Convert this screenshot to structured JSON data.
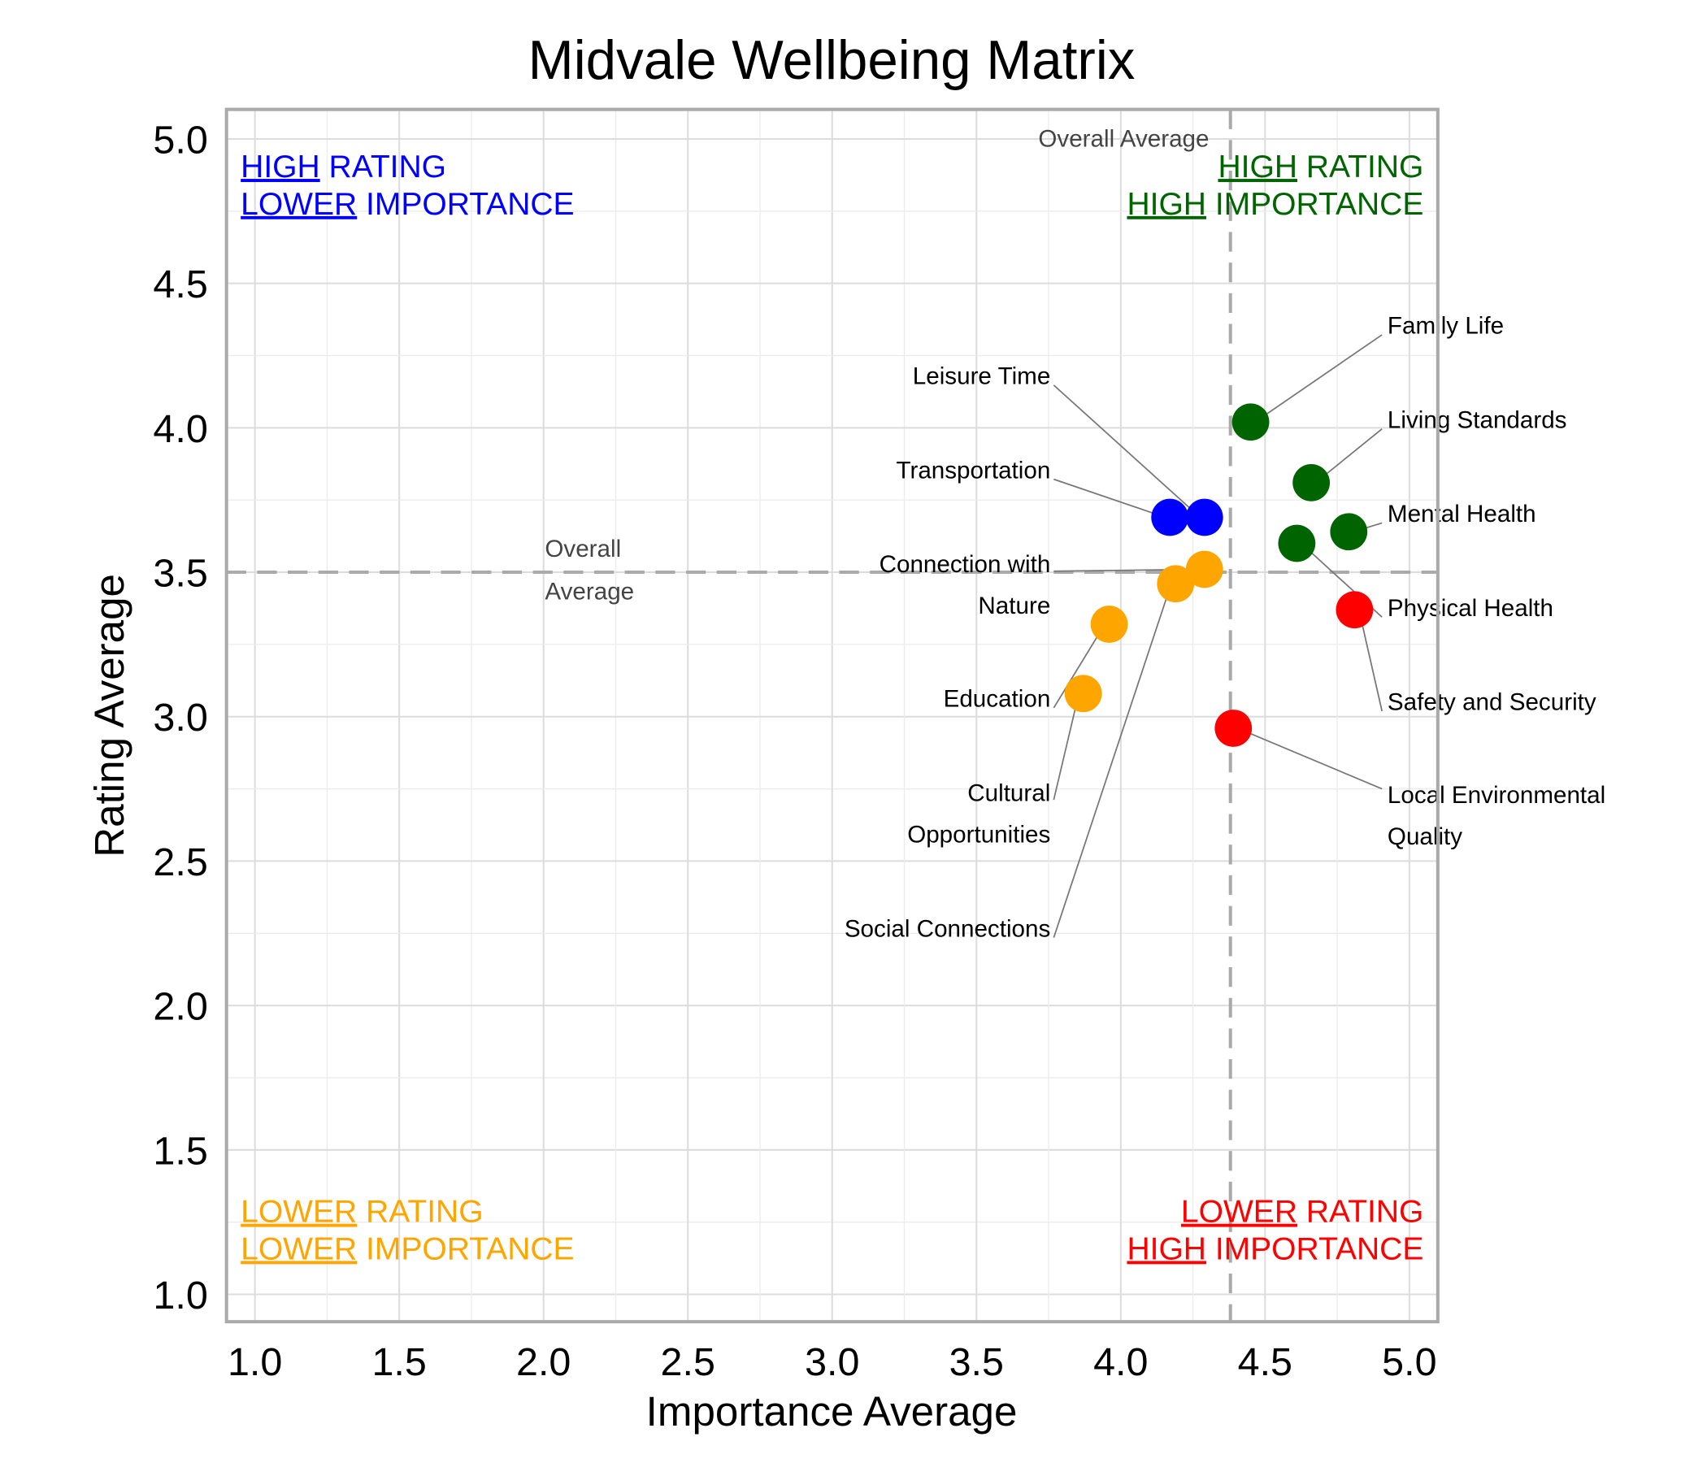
{
  "chart_data": {
    "type": "scatter",
    "title": "Midvale Wellbeing Matrix",
    "xlabel": "Importance Average",
    "ylabel": "Rating Average",
    "xlim": [
      0.9,
      5.1
    ],
    "ylim": [
      0.9,
      5.1
    ],
    "xticks": [
      "1.0",
      "1.5",
      "2.0",
      "2.5",
      "3.0",
      "3.5",
      "4.0",
      "4.5",
      "5.0"
    ],
    "yticks": [
      "1.0",
      "1.5",
      "2.0",
      "2.5",
      "3.0",
      "3.5",
      "4.0",
      "4.5",
      "5.0"
    ],
    "grid": true,
    "average_x": 4.38,
    "average_y": 3.5,
    "average_label_x": "Overall Average",
    "average_label_y": [
      "Overall",
      "Average"
    ],
    "colors": {
      "high_high": "#006400",
      "high_low": "#0000ff",
      "low_low": "#ffa500",
      "low_high": "#ff0000"
    },
    "quadrant_labels": {
      "top_left": [
        [
          "HIGH",
          " RATING"
        ],
        [
          "LOWER",
          " IMPORTANCE"
        ]
      ],
      "top_right": [
        [
          "HIGH",
          " RATING"
        ],
        [
          "HIGH",
          " IMPORTANCE"
        ]
      ],
      "bottom_left": [
        [
          "LOWER",
          " RATING"
        ],
        [
          "LOWER",
          " IMPORTANCE"
        ]
      ],
      "bottom_right": [
        [
          "LOWER",
          " RATING"
        ],
        [
          "HIGH",
          " IMPORTANCE"
        ]
      ]
    },
    "points": [
      {
        "label": [
          "Family Life"
        ],
        "x": 4.45,
        "y": 4.02,
        "quadrant": "high_high"
      },
      {
        "label": [
          "Living Standards"
        ],
        "x": 4.66,
        "y": 3.81,
        "quadrant": "high_high"
      },
      {
        "label": [
          "Mental Health"
        ],
        "x": 4.79,
        "y": 3.64,
        "quadrant": "high_high"
      },
      {
        "label": [
          "Physical Health"
        ],
        "x": 4.61,
        "y": 3.6,
        "quadrant": "high_high"
      },
      {
        "label": [
          "Safety and Security"
        ],
        "x": 4.81,
        "y": 3.37,
        "quadrant": "low_high"
      },
      {
        "label": [
          "Local Environmental",
          "Quality"
        ],
        "x": 4.39,
        "y": 2.96,
        "quadrant": "low_high"
      },
      {
        "label": [
          "Leisure Time"
        ],
        "x": 4.29,
        "y": 3.69,
        "quadrant": "high_low"
      },
      {
        "label": [
          "Transportation"
        ],
        "x": 4.17,
        "y": 3.69,
        "quadrant": "high_low"
      },
      {
        "label": [
          "Connection with",
          "Nature"
        ],
        "x": 4.29,
        "y": 3.51,
        "quadrant": "low_low"
      },
      {
        "label": [
          "Social Connections"
        ],
        "x": 4.19,
        "y": 3.46,
        "quadrant": "low_low"
      },
      {
        "label": [
          "Education"
        ],
        "x": 3.96,
        "y": 3.32,
        "quadrant": "low_low"
      },
      {
        "label": [
          "Cultural",
          "Opportunities"
        ],
        "x": 3.87,
        "y": 3.08,
        "quadrant": "low_low"
      }
    ]
  }
}
